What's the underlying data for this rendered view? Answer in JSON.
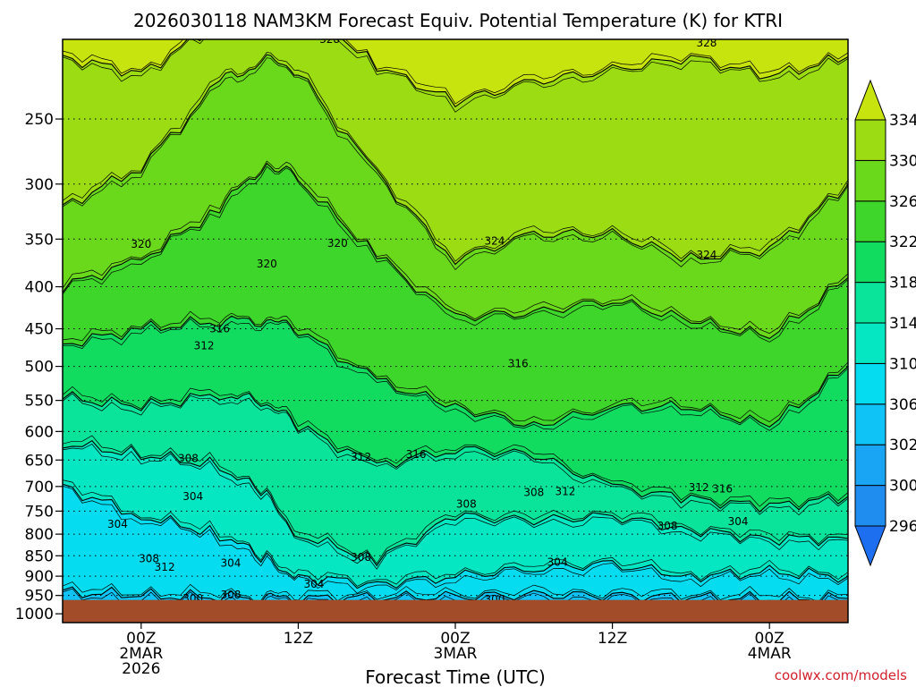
{
  "chart_data": {
    "type": "heatmap",
    "title": "2026030118 NAM3KM Forecast Equiv. Potential Temperature (K) for KTRI",
    "xlabel": "Forecast Time (UTC)",
    "ylabel": "",
    "x_range_hours": [
      -5,
      45
    ],
    "x_ticks": [
      {
        "hour": 0,
        "lines": [
          "00Z",
          "2MAR",
          "2026"
        ]
      },
      {
        "hour": 10,
        "lines": [
          "12Z"
        ]
      },
      {
        "hour": 20,
        "lines": [
          "00Z",
          "3MAR"
        ]
      },
      {
        "hour": 30,
        "lines": [
          "12Z"
        ]
      },
      {
        "hour": 40,
        "lines": [
          "00Z",
          "4MAR"
        ]
      }
    ],
    "y_range_hpa": [
      200,
      1025
    ],
    "y_ticks": [
      250,
      300,
      350,
      400,
      450,
      500,
      550,
      600,
      650,
      700,
      750,
      800,
      850,
      900,
      950,
      1000
    ],
    "colorbar": {
      "levels": [
        296,
        300,
        302,
        306,
        310,
        314,
        318,
        322,
        326,
        330,
        334
      ],
      "colors": [
        "#1e6ef0",
        "#1f8cf0",
        "#19a5f4",
        "#10c3f7",
        "#06dcef",
        "#05e6c2",
        "#0ae39a",
        "#12dc60",
        "#3ed62a",
        "#6ad81b",
        "#9bdc12",
        "#c8e40e"
      ],
      "extend": "both"
    },
    "ground": {
      "pressure_hpa": 962,
      "color": "#a24c2a"
    },
    "isotherm_levels": [
      300,
      304,
      308,
      312,
      316,
      320,
      324,
      328
    ],
    "series": [
      {
        "name": "328 K",
        "hour": [
          -5,
          0,
          5,
          8,
          10,
          15,
          20,
          25,
          30,
          35,
          40,
          45
        ],
        "pressure": [
          210,
          220,
          190,
          172,
          178,
          215,
          238,
          225,
          218,
          210,
          222,
          210
        ]
      },
      {
        "name": "324 K",
        "hour": [
          -5,
          0,
          5,
          8,
          10,
          15,
          20,
          25,
          30,
          35,
          40,
          45
        ],
        "pressure": [
          320,
          285,
          225,
          212,
          218,
          290,
          370,
          345,
          345,
          370,
          360,
          300
        ]
      },
      {
        "name": "320 K",
        "hour": [
          -5,
          0,
          5,
          8,
          10,
          15,
          20,
          25,
          30,
          35,
          40,
          45
        ],
        "pressure": [
          400,
          370,
          320,
          282,
          295,
          365,
          435,
          430,
          415,
          440,
          460,
          390
        ]
      },
      {
        "name": "316 K",
        "hour": [
          -5,
          0,
          5,
          8,
          10,
          15,
          20,
          25,
          30,
          35,
          40,
          45
        ],
        "pressure": [
          470,
          450,
          440,
          440,
          450,
          520,
          560,
          590,
          560,
          560,
          590,
          500
        ]
      },
      {
        "name": "312 K",
        "hour": [
          -5,
          0,
          5,
          8,
          10,
          15,
          20,
          25,
          30,
          35,
          40,
          45
        ],
        "pressure": [
          545,
          560,
          540,
          555,
          590,
          660,
          630,
          640,
          700,
          725,
          740,
          720
        ]
      },
      {
        "name": "308 K",
        "hour": [
          -5,
          0,
          5,
          8,
          10,
          15,
          20,
          25,
          30,
          35,
          40,
          45
        ],
        "pressure": [
          620,
          640,
          660,
          720,
          800,
          860,
          760,
          770,
          760,
          790,
          810,
          810
        ]
      },
      {
        "name": "304 K",
        "hour": [
          -5,
          0,
          5,
          8,
          10,
          15,
          20,
          25,
          30,
          35,
          40,
          45
        ],
        "pressure": [
          700,
          760,
          800,
          860,
          900,
          920,
          900,
          880,
          870,
          900,
          890,
          900
        ]
      },
      {
        "name": "300 K",
        "hour": [
          -5,
          0,
          5,
          8,
          10,
          15,
          20,
          25,
          30,
          35,
          40,
          45
        ],
        "pressure": [
          940,
          950,
          955,
          957,
          958,
          955,
          953,
          948,
          950,
          955,
          958,
          958
        ]
      }
    ],
    "contour_labels": [
      {
        "text": "328",
        "hour": 12,
        "pressure": 200
      },
      {
        "text": "328",
        "hour": 36,
        "pressure": 202
      },
      {
        "text": "324",
        "hour": 22.5,
        "pressure": 352
      },
      {
        "text": "324",
        "hour": 36,
        "pressure": 366
      },
      {
        "text": "320",
        "hour": 0,
        "pressure": 355
      },
      {
        "text": "320",
        "hour": 8,
        "pressure": 375
      },
      {
        "text": "320",
        "hour": 12.5,
        "pressure": 354
      },
      {
        "text": "316",
        "hour": 5,
        "pressure": 450
      },
      {
        "text": "316",
        "hour": 24,
        "pressure": 496
      },
      {
        "text": "316",
        "hour": 17.5,
        "pressure": 640
      },
      {
        "text": "316",
        "hour": 37,
        "pressure": 705
      },
      {
        "text": "312",
        "hour": 4,
        "pressure": 472
      },
      {
        "text": "312",
        "hour": 14,
        "pressure": 645
      },
      {
        "text": "312",
        "hour": 27,
        "pressure": 710
      },
      {
        "text": "312",
        "hour": 35.5,
        "pressure": 702
      },
      {
        "text": "312",
        "hour": 1.5,
        "pressure": 878
      },
      {
        "text": "308",
        "hour": 3,
        "pressure": 647
      },
      {
        "text": "308",
        "hour": 0.5,
        "pressure": 857
      },
      {
        "text": "308",
        "hour": 14,
        "pressure": 854
      },
      {
        "text": "308",
        "hour": 25,
        "pressure": 712
      },
      {
        "text": "308",
        "hour": 20.7,
        "pressure": 735
      },
      {
        "text": "308",
        "hour": 33.5,
        "pressure": 782
      },
      {
        "text": "308",
        "hour": 5.7,
        "pressure": 948
      },
      {
        "text": "304",
        "hour": 3.3,
        "pressure": 720
      },
      {
        "text": "304",
        "hour": -1.5,
        "pressure": 778
      },
      {
        "text": "304",
        "hour": 5.7,
        "pressure": 868
      },
      {
        "text": "304",
        "hour": 38,
        "pressure": 772
      },
      {
        "text": "304",
        "hour": 26.5,
        "pressure": 866
      },
      {
        "text": "304",
        "hour": 11,
        "pressure": 920
      },
      {
        "text": "300",
        "hour": 3.3,
        "pressure": 958
      },
      {
        "text": "300",
        "hour": 22.5,
        "pressure": 960
      }
    ]
  },
  "credit": "coolwx.com/models"
}
